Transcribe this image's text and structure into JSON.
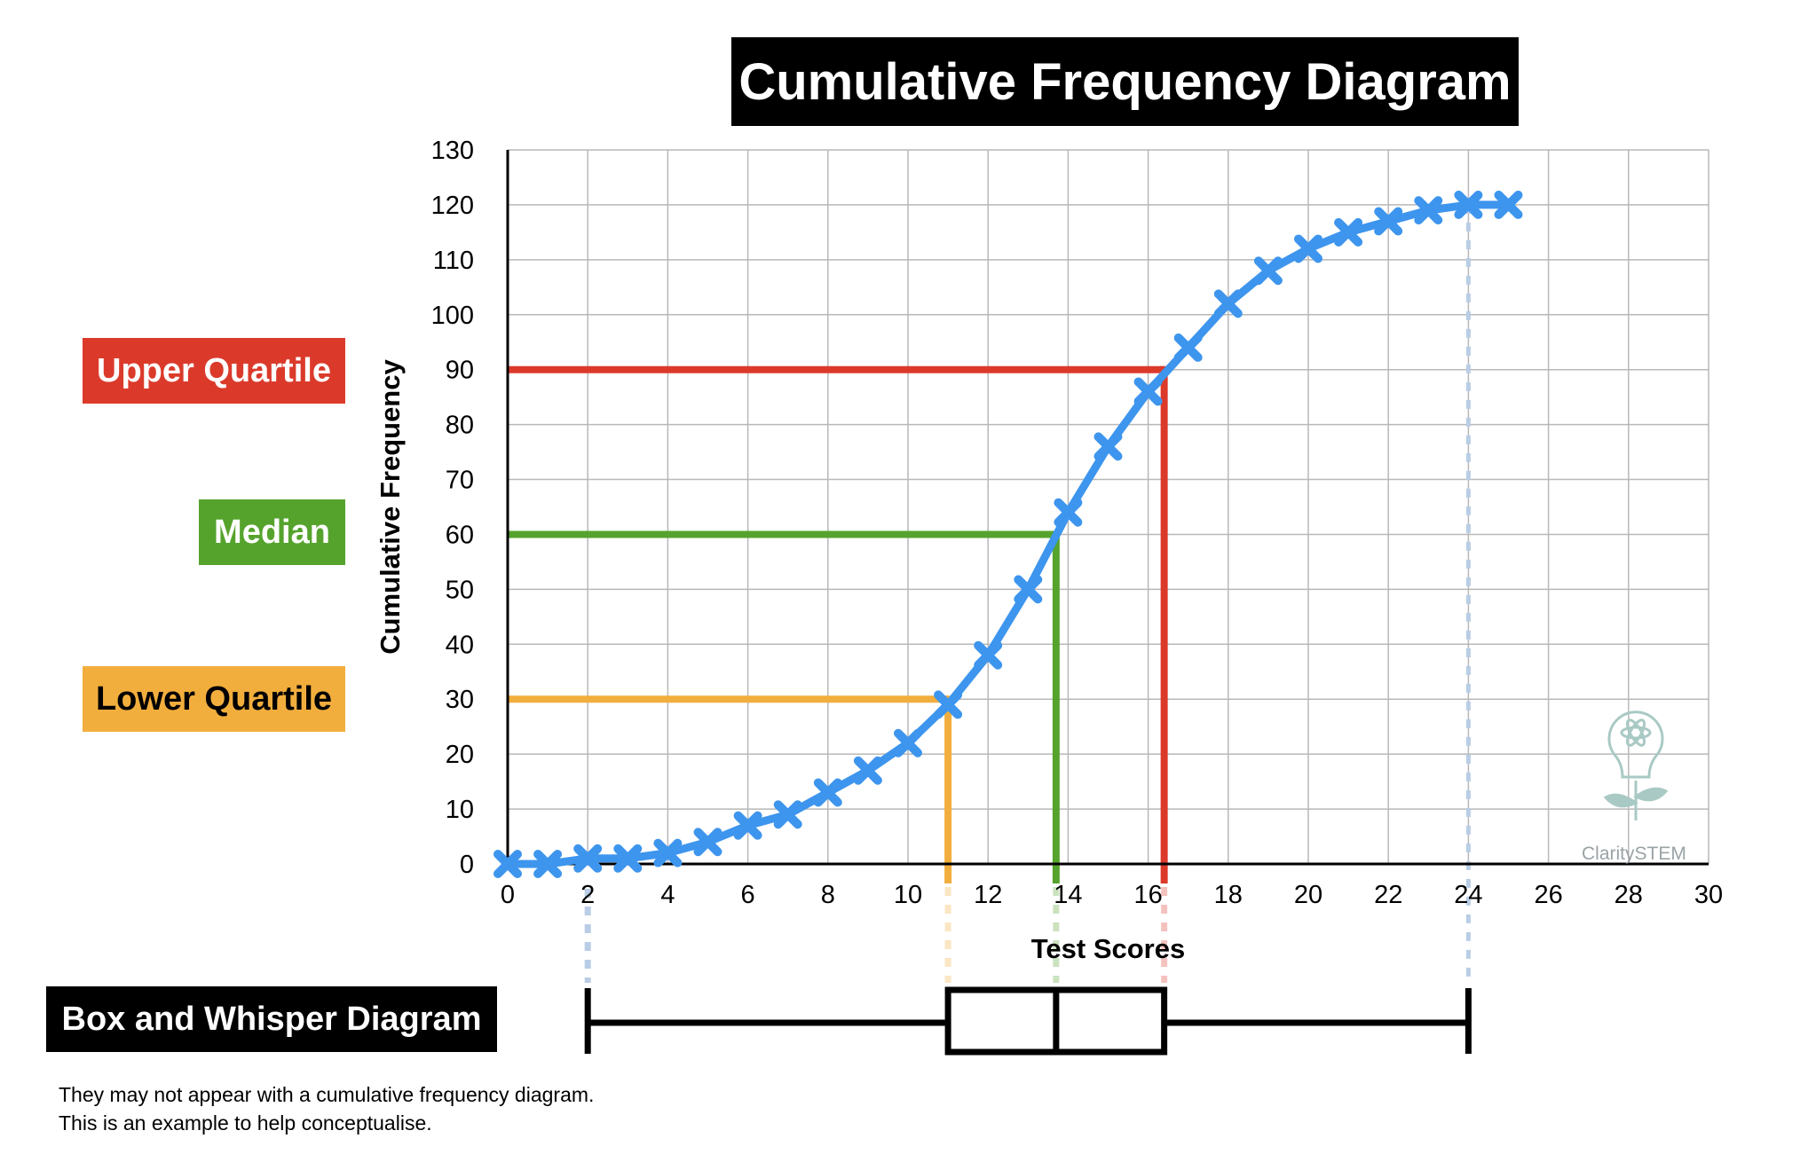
{
  "title": "Cumulative Frequency Diagram",
  "labels": {
    "upper_quartile": "Upper Quartile",
    "median": "Median",
    "lower_quartile": "Lower Quartile",
    "box_whisker": "Box and Whisper Diagram"
  },
  "notes": [
    "They may not appear with a cumulative frequency diagram.",
    "This is an example to help conceptualise."
  ],
  "watermark": "ClaritySTEM",
  "colors": {
    "series": "#3d95ee",
    "upper_quartile": "#db3a2b",
    "median": "#55a32d",
    "lower_quartile": "#f2ae3d",
    "grid": "#b8b8b8",
    "min_max_guide": "#b9cde6"
  },
  "chart_data": {
    "type": "line",
    "xlabel": "Test Scores",
    "ylabel": "Cumulative Frequency",
    "xlim": [
      0,
      30
    ],
    "ylim": [
      0,
      130
    ],
    "x_ticks": [
      0,
      2,
      4,
      6,
      8,
      10,
      12,
      14,
      16,
      18,
      20,
      22,
      24,
      26,
      28,
      30
    ],
    "y_ticks": [
      0,
      10,
      20,
      30,
      40,
      50,
      60,
      70,
      80,
      90,
      100,
      110,
      120,
      130
    ],
    "grid": true,
    "marker": "cross",
    "series": [
      {
        "x": [
          0,
          1,
          2,
          3,
          4,
          5,
          6,
          7,
          8,
          9,
          10,
          11,
          12,
          13,
          14,
          15,
          16,
          17,
          18,
          19,
          20,
          21,
          22,
          23,
          24,
          25
        ],
        "y": [
          0,
          0,
          1,
          1,
          2,
          4,
          7,
          9,
          13,
          17,
          22,
          29,
          38,
          50,
          64,
          76,
          86,
          94,
          102,
          108,
          112,
          115,
          117,
          119,
          120,
          120
        ]
      }
    ],
    "reference_lines": [
      {
        "name": "Upper Quartile",
        "y": 90,
        "x": 16.4
      },
      {
        "name": "Median",
        "y": 60,
        "x": 13.7
      },
      {
        "name": "Lower Quartile",
        "y": 30,
        "x": 11
      }
    ],
    "box_plot": {
      "min": 2,
      "lower_quartile": 11,
      "median": 13.7,
      "upper_quartile": 16.4,
      "max": 24
    }
  }
}
